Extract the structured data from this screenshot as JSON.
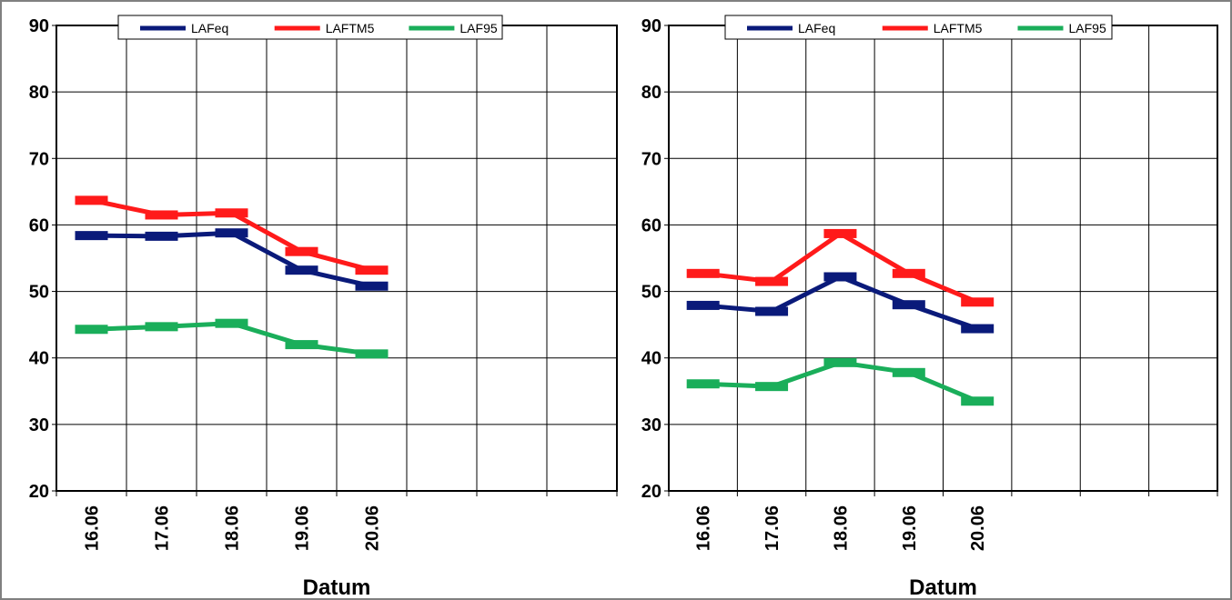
{
  "chart_data": [
    {
      "type": "line",
      "x_label": "Datum",
      "categories": [
        "16.06",
        "17.06",
        "18.06",
        "19.06",
        "20.06",
        null,
        null,
        null
      ],
      "ylim": [
        20,
        90
      ],
      "yticks": [
        20,
        30,
        40,
        50,
        60,
        70,
        80,
        90
      ],
      "grid": true,
      "legend": "top",
      "series": [
        {
          "name": "LAFeq",
          "color": "#0a1a7a",
          "values": [
            58.4,
            58.3,
            58.8,
            53.2,
            50.8,
            null,
            null,
            null
          ]
        },
        {
          "name": "LAFTM5",
          "color": "#ff1a1a",
          "values": [
            63.7,
            61.5,
            61.8,
            56.0,
            53.2,
            null,
            null,
            null
          ]
        },
        {
          "name": "LAF95",
          "color": "#1aae5a",
          "values": [
            44.3,
            44.7,
            45.2,
            42.0,
            40.6,
            null,
            null,
            null
          ]
        }
      ]
    },
    {
      "type": "line",
      "x_label": "Datum",
      "categories": [
        "16.06",
        "17.06",
        "18.06",
        "19.06",
        "20.06",
        null,
        null,
        null
      ],
      "ylim": [
        20,
        90
      ],
      "yticks": [
        20,
        30,
        40,
        50,
        60,
        70,
        80,
        90
      ],
      "grid": true,
      "legend": "top",
      "series": [
        {
          "name": "LAFeq",
          "color": "#0a1a7a",
          "values": [
            47.9,
            47.0,
            52.2,
            48.0,
            44.4,
            null,
            null,
            null
          ]
        },
        {
          "name": "LAFTM5",
          "color": "#ff1a1a",
          "values": [
            52.7,
            51.5,
            58.7,
            52.7,
            48.4,
            null,
            null,
            null
          ]
        },
        {
          "name": "LAF95",
          "color": "#1aae5a",
          "values": [
            36.1,
            35.7,
            39.3,
            37.8,
            33.5,
            null,
            null,
            null
          ]
        }
      ]
    }
  ]
}
